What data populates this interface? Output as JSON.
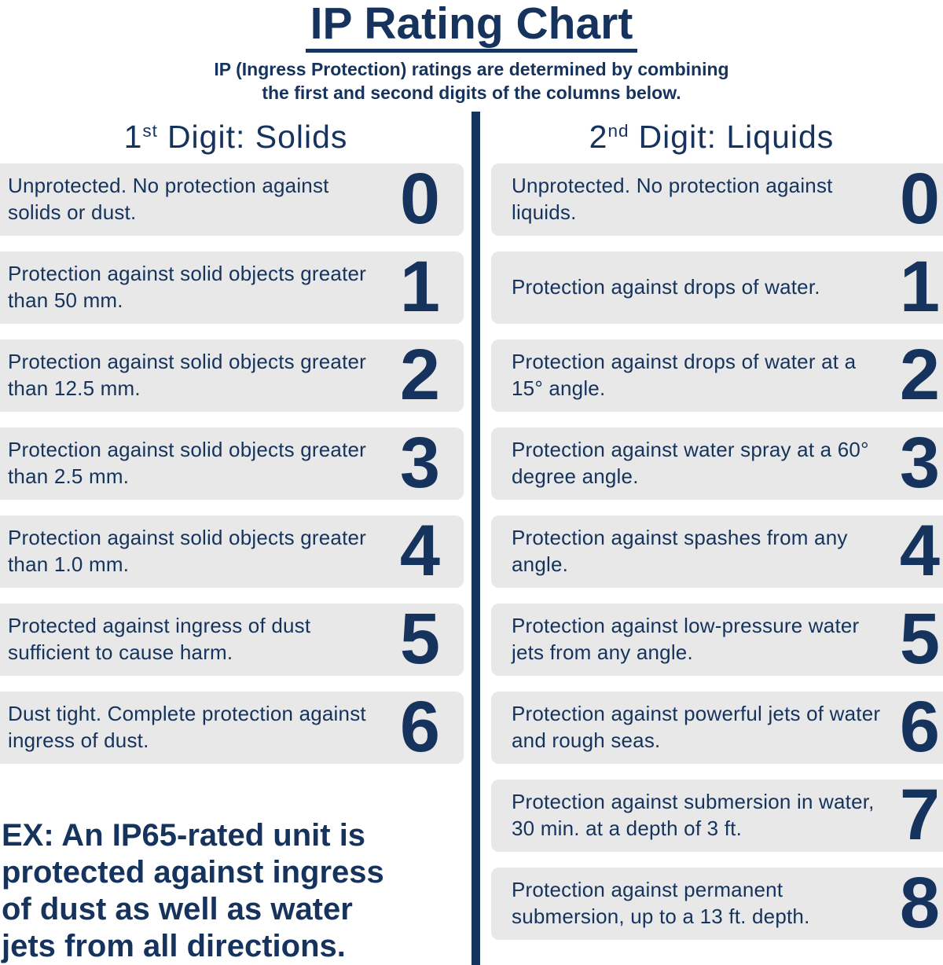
{
  "header": {
    "title": "IP Rating Chart",
    "subtitle_lines": [
      "IP (Ingress Protection) ratings are determined by combining",
      "the first and second digits of the columns below."
    ]
  },
  "columns": {
    "left": {
      "ordinal_base": "1",
      "ordinal_suffix": "st",
      "heading": "Digit: Solids",
      "rows": [
        {
          "digit": "0",
          "text": "Unprotected. No protection against solids or dust."
        },
        {
          "digit": "1",
          "text": "Protection against solid objects greater than 50 mm."
        },
        {
          "digit": "2",
          "text": "Protection against solid objects greater than 12.5 mm."
        },
        {
          "digit": "3",
          "text": "Protection against solid objects greater than 2.5 mm."
        },
        {
          "digit": "4",
          "text": "Protection against solid objects greater than 1.0 mm."
        },
        {
          "digit": "5",
          "text": "Protected against ingress of dust sufficient to cause harm."
        },
        {
          "digit": "6",
          "text": "Dust tight. Complete protection against ingress of dust."
        }
      ]
    },
    "right": {
      "ordinal_base": "2",
      "ordinal_suffix": "nd",
      "heading": "Digit: Liquids",
      "rows": [
        {
          "digit": "0",
          "text": "Unprotected. No protection against liquids."
        },
        {
          "digit": "1",
          "text": "Protection against drops of water."
        },
        {
          "digit": "2",
          "text": "Protection against drops of water at a 15° angle."
        },
        {
          "digit": "3",
          "text": "Protection against water spray at a 60° degree angle."
        },
        {
          "digit": "4",
          "text": "Protection against spashes from any angle."
        },
        {
          "digit": "5",
          "text": "Protection against low-pressure water jets from any angle."
        },
        {
          "digit": "6",
          "text": "Protection against powerful jets of water and rough seas."
        },
        {
          "digit": "7",
          "text": "Protection against submersion in water, 30 min. at a depth of 3 ft."
        },
        {
          "digit": "8",
          "text": "Protection against permanent submersion, up to a 13 ft. depth."
        }
      ]
    }
  },
  "example": {
    "lines": [
      "EX: An IP65-rated unit is",
      "protected against ingress",
      "of dust as well as water",
      "jets from all directions."
    ]
  },
  "colors": {
    "navy": "#15335c",
    "card_bg": "#e8e8e8"
  }
}
